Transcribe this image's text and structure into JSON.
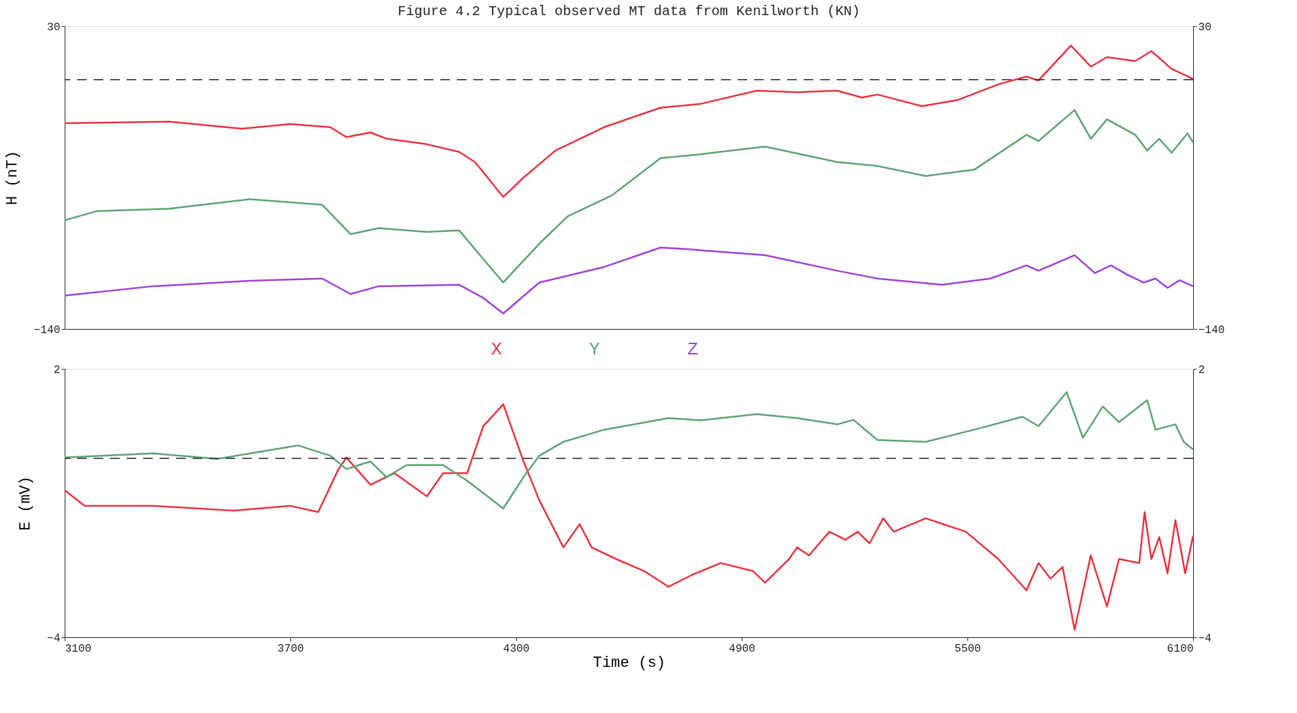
{
  "chart_data": [
    {
      "type": "line",
      "title": "Figure 4.2  Typical observed MT data from Kenilworth (KN)",
      "ylabel": "H (nT)",
      "xlim": [
        3100,
        6100
      ],
      "xticks": [
        3100,
        3700,
        4300,
        4900,
        5500,
        6100
      ],
      "ylim": [
        -140,
        30
      ],
      "yticks": [
        -140,
        30
      ],
      "y2lim": [
        -140,
        30
      ],
      "y2ticks": [
        -140,
        30
      ],
      "tick_labels": "y",
      "grid": false,
      "line_style": "solid",
      "ref_lines": [
        {
          "axis": "y",
          "value": 0,
          "line_style": "dashed",
          "color": "#222222"
        }
      ],
      "series": [
        {
          "name": "X",
          "color": "#e8323c",
          "x": [
            3100,
            3378,
            3571,
            3699,
            3806,
            3849,
            3913,
            3956,
            4063,
            4149,
            4191,
            4266,
            4320,
            4405,
            4534,
            4684,
            4791,
            4940,
            5047,
            5154,
            5219,
            5261,
            5379,
            5475,
            5582,
            5657,
            5689,
            5775,
            5828,
            5871,
            5946,
            5989,
            6043,
            6100
          ],
          "values": [
            -24.5,
            -23.6,
            -27.6,
            -25,
            -26.7,
            -32.3,
            -29.7,
            -33.2,
            -36.3,
            -40.6,
            -46.3,
            -65.9,
            -55,
            -39.8,
            -26.7,
            -15.8,
            -13.6,
            -6.2,
            -7.1,
            -6.2,
            -10.1,
            -8.4,
            -14.9,
            -11.4,
            -2.7,
            1.7,
            -0.5,
            19.1,
            7.3,
            12.6,
            10.4,
            16,
            6,
            0.4
          ]
        },
        {
          "name": "Y",
          "color": "#5aa46e",
          "x": [
            3100,
            3186,
            3378,
            3592,
            3785,
            3860,
            3935,
            4063,
            4149,
            4213,
            4266,
            4362,
            4437,
            4555,
            4684,
            4791,
            4962,
            5154,
            5261,
            5389,
            5518,
            5657,
            5689,
            5785,
            5828,
            5871,
            5946,
            5978,
            6010,
            6043,
            6085,
            6100
          ],
          "values": [
            -79,
            -73.8,
            -72.5,
            -67.2,
            -70.3,
            -86.8,
            -83.4,
            -85.5,
            -84.7,
            -100.8,
            -113.9,
            -92.1,
            -76.8,
            -65,
            -44.1,
            -41.9,
            -37.6,
            -46.3,
            -48.5,
            -54.1,
            -50.6,
            -31,
            -34.5,
            -17.1,
            -33.2,
            -22.3,
            -31,
            -39.8,
            -33.2,
            -41.1,
            -30.2,
            -35.4
          ]
        },
        {
          "name": "Z",
          "color": "#a040d8",
          "x": [
            3100,
            3335,
            3592,
            3785,
            3860,
            3935,
            4149,
            4213,
            4266,
            4362,
            4534,
            4684,
            4748,
            4962,
            5154,
            5261,
            5432,
            5561,
            5657,
            5689,
            5785,
            5839,
            5882,
            5925,
            5968,
            6000,
            6032,
            6064,
            6100
          ],
          "values": [
            -121.3,
            -116,
            -113,
            -111.7,
            -120.4,
            -116,
            -115.2,
            -122.6,
            -131.3,
            -113.9,
            -105.2,
            -94.3,
            -95.1,
            -98.6,
            -107.3,
            -111.7,
            -115.2,
            -111.7,
            -104.3,
            -107.3,
            -98.6,
            -108.6,
            -104.3,
            -109.5,
            -113.9,
            -111.7,
            -116.9,
            -112.6,
            -116
          ]
        }
      ]
    },
    {
      "type": "line",
      "ylabel": "E (mV)",
      "xlabel": "Time (s)",
      "xlim": [
        3100,
        6100
      ],
      "xticks": [
        3100,
        3700,
        4300,
        4900,
        5500,
        6100
      ],
      "ylim": [
        -4,
        2
      ],
      "yticks": [
        -4,
        2
      ],
      "y2lim": [
        -4,
        2
      ],
      "y2ticks": [
        -4,
        2
      ],
      "grid": false,
      "line_style": "solid",
      "ref_lines": [
        {
          "axis": "y",
          "value": 0,
          "line_style": "dashed",
          "color": "#222222"
        }
      ],
      "series": [
        {
          "color": "#e8323c",
          "x": [
            3100,
            3153,
            3335,
            3549,
            3699,
            3774,
            3828,
            3849,
            3913,
            3977,
            4063,
            4106,
            4170,
            4213,
            4266,
            4320,
            4362,
            4426,
            4469,
            4501,
            4566,
            4641,
            4705,
            4769,
            4844,
            4930,
            4962,
            5026,
            5047,
            5079,
            5133,
            5176,
            5208,
            5240,
            5276,
            5304,
            5389,
            5496,
            5582,
            5657,
            5689,
            5721,
            5753,
            5785,
            5828,
            5871,
            5903,
            5957,
            5971,
            5989,
            6010,
            6032,
            6053,
            6079,
            6100
          ],
          "values": [
            -0.71,
            -1.06,
            -1.06,
            -1.17,
            -1.06,
            -1.2,
            -0.24,
            0.02,
            -0.59,
            -0.33,
            -0.85,
            -0.33,
            -0.33,
            0.72,
            1.21,
            -0.07,
            -0.94,
            -1.99,
            -1.47,
            -1.99,
            -2.25,
            -2.52,
            -2.87,
            -2.6,
            -2.34,
            -2.52,
            -2.78,
            -2.25,
            -1.99,
            -2.17,
            -1.64,
            -1.82,
            -1.64,
            -1.9,
            -1.34,
            -1.64,
            -1.34,
            -1.64,
            -2.25,
            -2.95,
            -2.34,
            -2.69,
            -2.43,
            -3.83,
            -2.17,
            -3.31,
            -2.25,
            -2.34,
            -1.2,
            -2.25,
            -1.76,
            -2.57,
            -1.38,
            -2.57,
            -1.73
          ]
        },
        {
          "color": "#5aa46e",
          "x": [
            3100,
            3335,
            3506,
            3720,
            3806,
            3849,
            3913,
            3956,
            4009,
            4106,
            4170,
            4266,
            4320,
            4362,
            4426,
            4534,
            4705,
            4791,
            4940,
            5047,
            5154,
            5197,
            5261,
            5389,
            5518,
            5647,
            5689,
            5764,
            5807,
            5860,
            5903,
            5978,
            6000,
            6053,
            6075,
            6100
          ],
          "values": [
            0.02,
            0.11,
            -0.01,
            0.29,
            0.06,
            -0.24,
            -0.07,
            -0.42,
            -0.15,
            -0.15,
            -0.5,
            -1.12,
            -0.42,
            0.06,
            0.37,
            0.64,
            0.9,
            0.85,
            0.99,
            0.9,
            0.76,
            0.86,
            0.41,
            0.37,
            0.64,
            0.93,
            0.72,
            1.48,
            0.46,
            1.16,
            0.81,
            1.3,
            0.64,
            0.76,
            0.37,
            0.2
          ]
        }
      ]
    }
  ]
}
